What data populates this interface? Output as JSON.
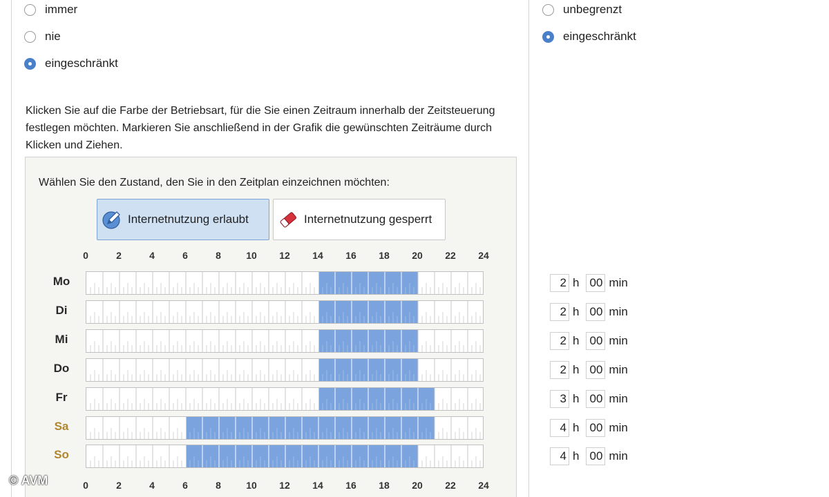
{
  "left_options": [
    {
      "label": "immer",
      "checked": false
    },
    {
      "label": "nie",
      "checked": false
    },
    {
      "label": "eingeschränkt",
      "checked": true
    }
  ],
  "right_options": [
    {
      "label": "unbegrenzt",
      "checked": false
    },
    {
      "label": "eingeschränkt",
      "checked": true
    }
  ],
  "instructions": "Klicken Sie auf die Farbe der Betriebsart, für die Sie einen Zeitraum innerhalb der Zeitsteuerung festlegen möchten. Markieren Sie anschließend in der Grafik die gewünschten Zeiträume durch Klicken und Ziehen.",
  "schedule": {
    "prompt": "Wählen Sie den Zustand, den Sie in den Zeitplan einzeichnen möchten:",
    "mode_allowed": "Internetnutzung erlaubt",
    "mode_blocked": "Internetnutzung gesperrt",
    "active_mode": "allowed",
    "hour_labels": [
      "0",
      "2",
      "4",
      "6",
      "8",
      "10",
      "12",
      "14",
      "16",
      "18",
      "20",
      "22",
      "24"
    ],
    "days": [
      {
        "label": "Mo",
        "weekend": false,
        "allowed_from": 14,
        "allowed_to": 20
      },
      {
        "label": "Di",
        "weekend": false,
        "allowed_from": 14,
        "allowed_to": 20
      },
      {
        "label": "Mi",
        "weekend": false,
        "allowed_from": 14,
        "allowed_to": 20
      },
      {
        "label": "Do",
        "weekend": false,
        "allowed_from": 14,
        "allowed_to": 20
      },
      {
        "label": "Fr",
        "weekend": false,
        "allowed_from": 14,
        "allowed_to": 21
      },
      {
        "label": "Sa",
        "weekend": true,
        "allowed_from": 6,
        "allowed_to": 21
      },
      {
        "label": "So",
        "weekend": true,
        "allowed_from": 6,
        "allowed_to": 20
      }
    ]
  },
  "budgets": [
    {
      "hours": "2",
      "minutes": "00"
    },
    {
      "hours": "2",
      "minutes": "00"
    },
    {
      "hours": "2",
      "minutes": "00"
    },
    {
      "hours": "2",
      "minutes": "00"
    },
    {
      "hours": "3",
      "minutes": "00"
    },
    {
      "hours": "4",
      "minutes": "00"
    },
    {
      "hours": "4",
      "minutes": "00"
    }
  ],
  "units": {
    "hours": "h",
    "minutes": "min"
  },
  "colors": {
    "allowed": "#7ba3dd",
    "accent": "#4a80c9",
    "weekend_label": "#b08631"
  },
  "copyright": "© AVM"
}
